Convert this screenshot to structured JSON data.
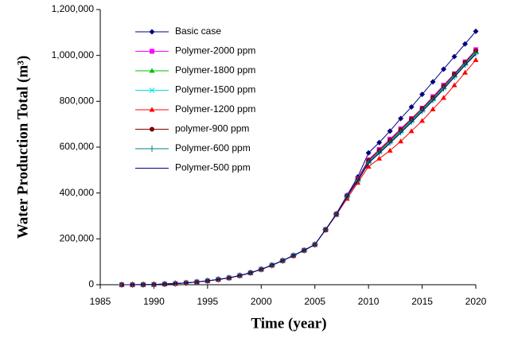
{
  "chart_data": {
    "type": "line",
    "xlabel": "Time (year)",
    "ylabel": "Water Production Total (m³)",
    "x": [
      1987,
      1988,
      1989,
      1990,
      1991,
      1992,
      1993,
      1994,
      1995,
      1996,
      1997,
      1998,
      1999,
      2000,
      2001,
      2002,
      2003,
      2004,
      2005,
      2006,
      2007,
      2008,
      2009,
      2010,
      2011,
      2012,
      2013,
      2014,
      2015,
      2016,
      2017,
      2018,
      2019,
      2020
    ],
    "xlim": [
      1985,
      2020
    ],
    "xticks": [
      1985,
      1990,
      1995,
      2000,
      2005,
      2010,
      2015,
      2020
    ],
    "ylim": [
      0,
      1200000
    ],
    "yticks": [
      0,
      {
        "value": 200000,
        "label": "200,000"
      },
      {
        "value": 400000,
        "label": "400,000"
      },
      {
        "value": 600000,
        "label": "600,000"
      },
      {
        "value": 800000,
        "label": "800,000"
      },
      {
        "value": 1000000,
        "label": "1,000,000"
      },
      {
        "value": 1200000,
        "label": "1,200,000"
      }
    ],
    "grid": false,
    "legend": "upper left",
    "series": [
      {
        "name": "Basic case",
        "color": "#000080",
        "marker": "diamond",
        "values": [
          0,
          0,
          500,
          1000,
          3000,
          5000,
          8000,
          12000,
          17000,
          23000,
          30000,
          40000,
          52000,
          67000,
          85000,
          105000,
          127000,
          150000,
          175000,
          240000,
          310000,
          390000,
          470000,
          575000,
          620000,
          670000,
          725000,
          775000,
          830000,
          885000,
          940000,
          995000,
          1050000,
          1105000
        ]
      },
      {
        "name": "Polymer-2000 ppm",
        "color": "#ff00ff",
        "marker": "square",
        "values": [
          0,
          0,
          500,
          1000,
          3000,
          5000,
          8000,
          12000,
          17000,
          23000,
          30000,
          40000,
          52000,
          67000,
          85000,
          105000,
          127000,
          150000,
          175000,
          240000,
          308000,
          388000,
          462000,
          545000,
          590000,
          635000,
          680000,
          725000,
          770000,
          820000,
          870000,
          920000,
          972000,
          1025000
        ]
      },
      {
        "name": "Polymer-1800 ppm",
        "color": "#00c000",
        "marker": "triangle",
        "values": [
          0,
          0,
          500,
          1000,
          3000,
          5000,
          8000,
          12000,
          17000,
          23000,
          30000,
          40000,
          52000,
          67000,
          85000,
          105000,
          127000,
          150000,
          175000,
          240000,
          307000,
          386000,
          458000,
          538000,
          582000,
          627000,
          672000,
          718000,
          764000,
          812000,
          862000,
          914000,
          966000,
          1015000
        ]
      },
      {
        "name": "Polymer-1500 ppm",
        "color": "#00e0e0",
        "marker": "cross",
        "values": [
          0,
          0,
          500,
          1000,
          3000,
          5000,
          8000,
          12000,
          17000,
          23000,
          30000,
          40000,
          52000,
          67000,
          85000,
          105000,
          127000,
          150000,
          175000,
          240000,
          307000,
          385000,
          456000,
          535000,
          578000,
          622000,
          667000,
          713000,
          760000,
          808000,
          858000,
          910000,
          962000,
          1012000
        ]
      },
      {
        "name": "Polymer-1200 ppm",
        "color": "#ff0000",
        "marker": "triangle",
        "values": [
          0,
          0,
          500,
          1000,
          3000,
          5000,
          8000,
          12000,
          17000,
          23000,
          30000,
          40000,
          52000,
          67000,
          85000,
          105000,
          127000,
          150000,
          175000,
          238000,
          305000,
          375000,
          445000,
          515000,
          550000,
          585000,
          625000,
          670000,
          715000,
          765000,
          815000,
          870000,
          925000,
          980000
        ]
      },
      {
        "name": "polymer-900 ppm",
        "color": "#800000",
        "marker": "circle",
        "values": [
          0,
          0,
          500,
          1000,
          3000,
          5000,
          8000,
          12000,
          17000,
          23000,
          30000,
          40000,
          52000,
          67000,
          85000,
          105000,
          127000,
          150000,
          175000,
          240000,
          308000,
          387000,
          460000,
          542000,
          586000,
          630000,
          676000,
          722000,
          768000,
          816000,
          866000,
          918000,
          970000,
          1020000
        ]
      },
      {
        "name": "Polymer-600 ppm",
        "color": "#008080",
        "marker": "plus",
        "values": [
          0,
          0,
          500,
          1000,
          3000,
          5000,
          8000,
          12000,
          17000,
          23000,
          30000,
          40000,
          52000,
          67000,
          85000,
          105000,
          127000,
          150000,
          175000,
          240000,
          307000,
          385000,
          455000,
          533000,
          576000,
          620000,
          665000,
          711000,
          758000,
          806000,
          856000,
          908000,
          960000,
          1010000
        ]
      },
      {
        "name": "Polymer-500 ppm",
        "color": "#000080",
        "marker": "none",
        "values": [
          0,
          0,
          500,
          1000,
          3000,
          5000,
          8000,
          12000,
          17000,
          23000,
          30000,
          40000,
          52000,
          67000,
          85000,
          105000,
          127000,
          150000,
          175000,
          240000,
          306000,
          384000,
          453000,
          530000,
          573000,
          617000,
          662000,
          708000,
          755000,
          803000,
          853000,
          905000,
          957000,
          1005000
        ]
      }
    ]
  }
}
